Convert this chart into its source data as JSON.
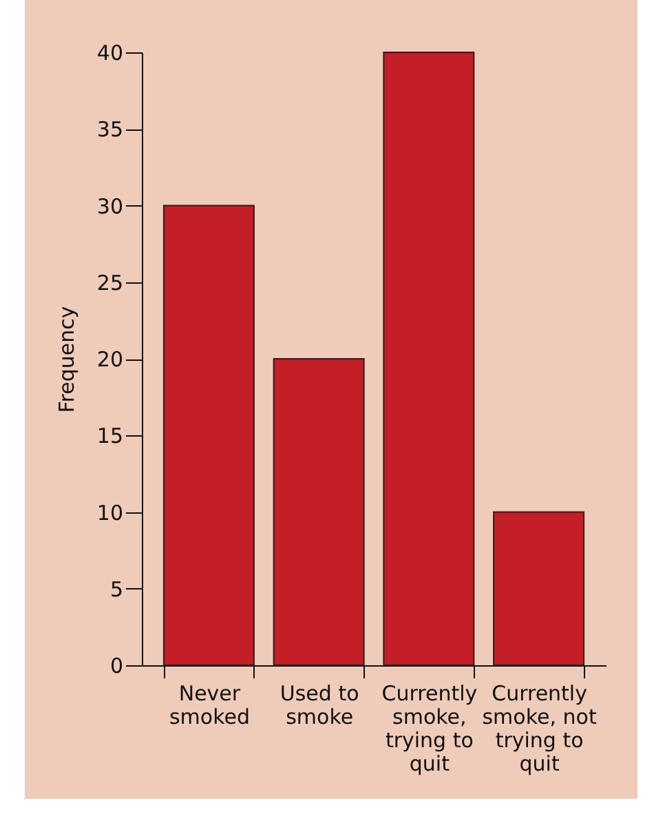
{
  "chart_data": {
    "type": "bar",
    "ylabel": "Frequency",
    "categories": [
      "Never smoked",
      "Used to smoke",
      "Currently smoke, trying to quit",
      "Currently smoke, not trying to quit"
    ],
    "values": [
      30,
      20,
      40,
      10
    ],
    "color": "#c41e26",
    "ylim": [
      0,
      40
    ],
    "yticks": [
      0,
      5,
      10,
      15,
      20,
      25,
      30,
      35,
      40
    ],
    "grid": false
  }
}
